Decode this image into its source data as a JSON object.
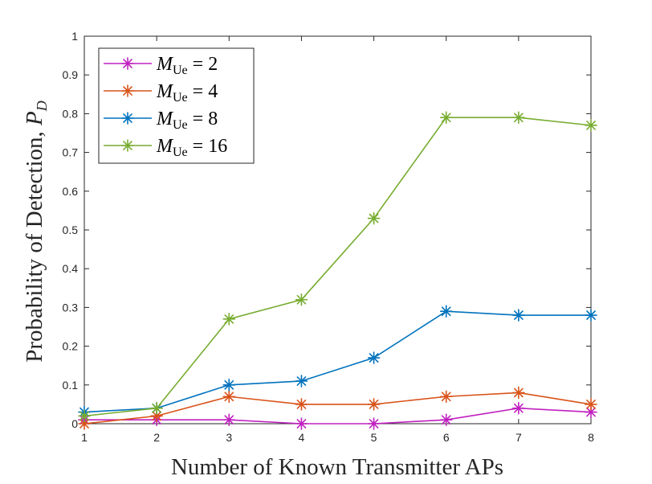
{
  "chart_data": {
    "type": "line",
    "title": "",
    "xlabel": "Number of Known Transmitter APs",
    "ylabel": "Probability of Detection, ",
    "ylabel_symbol": "P",
    "ylabel_sub": "D",
    "xlim": [
      1,
      8
    ],
    "ylim": [
      0,
      1
    ],
    "x": [
      1,
      2,
      3,
      4,
      5,
      6,
      7,
      8
    ],
    "xticks": [
      "1",
      "2",
      "3",
      "4",
      "5",
      "6",
      "7",
      "8"
    ],
    "yticks": [
      "0",
      "0.1",
      "0.2",
      "0.3",
      "0.4",
      "0.5",
      "0.6",
      "0.7",
      "0.8",
      "0.9",
      "1"
    ],
    "ytick_values": [
      0,
      0.1,
      0.2,
      0.3,
      0.4,
      0.5,
      0.6,
      0.7,
      0.8,
      0.9,
      1
    ],
    "grid": false,
    "legend_position": "top-left",
    "marker": "asterisk",
    "series": [
      {
        "name": "M_Ue = 2",
        "symbol": "M",
        "sub": "Ue",
        "rhs": " = 2",
        "color": "#c020c0",
        "values": [
          0.01,
          0.01,
          0.01,
          0.0,
          0.0,
          0.01,
          0.04,
          0.03
        ]
      },
      {
        "name": "M_Ue = 4",
        "symbol": "M",
        "sub": "Ue",
        "rhs": " = 4",
        "color": "#d95319",
        "values": [
          0.0,
          0.02,
          0.07,
          0.05,
          0.05,
          0.07,
          0.08,
          0.05
        ]
      },
      {
        "name": "M_Ue = 8",
        "symbol": "M",
        "sub": "Ue",
        "rhs": " = 8",
        "color": "#0072bd",
        "values": [
          0.03,
          0.04,
          0.1,
          0.11,
          0.17,
          0.29,
          0.28,
          0.28
        ]
      },
      {
        "name": "M_Ue = 16",
        "symbol": "M",
        "sub": "Ue",
        "rhs": " = 16",
        "color": "#77ac30",
        "values": [
          0.02,
          0.04,
          0.27,
          0.32,
          0.53,
          0.79,
          0.79,
          0.77
        ]
      }
    ]
  }
}
